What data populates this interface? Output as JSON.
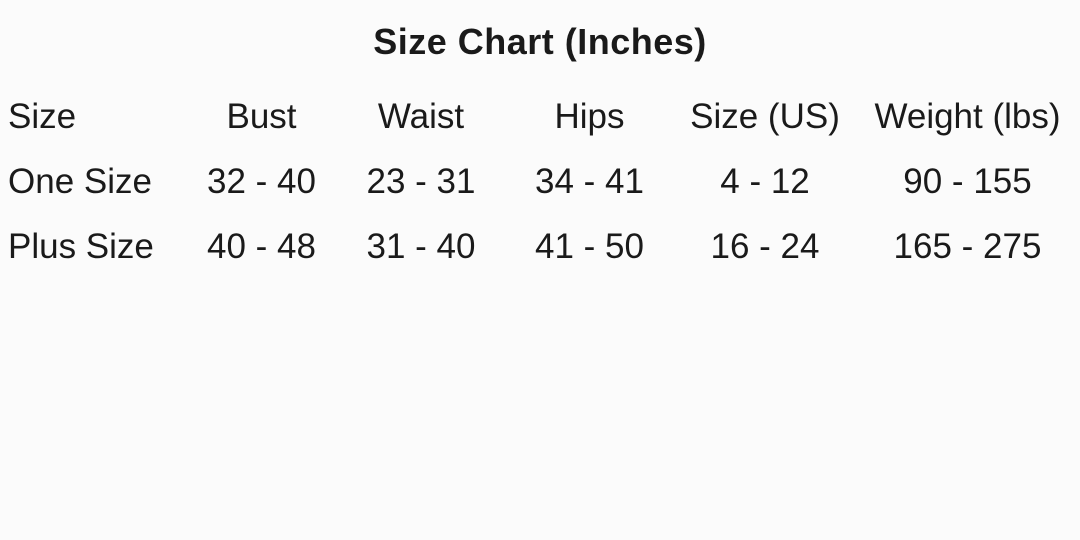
{
  "page": {
    "background_color": "#fbfbfb",
    "text_color": "#1a1a1a"
  },
  "title": "Size Chart (Inches)",
  "table": {
    "columns": [
      "Size",
      "Bust",
      "Waist",
      "Hips",
      "Size (US)",
      "Weight (lbs)"
    ],
    "rows": [
      [
        "One Size",
        "32 - 40",
        "23 - 31",
        "34 - 41",
        "4 - 12",
        "90 - 155"
      ],
      [
        "Plus Size",
        "40 - 48",
        "31 - 40",
        "41 - 50",
        "16 - 24",
        "165 - 275"
      ]
    ]
  },
  "chart_data": {
    "type": "table",
    "title": "Size Chart (Inches)",
    "columns": [
      "Size",
      "Bust",
      "Waist",
      "Hips",
      "Size (US)",
      "Weight (lbs)"
    ],
    "rows": [
      {
        "size": "One Size",
        "bust_inches": [
          32,
          40
        ],
        "waist_inches": [
          23,
          31
        ],
        "hips_inches": [
          34,
          41
        ],
        "size_us": [
          4,
          12
        ],
        "weight_lbs": [
          90,
          155
        ]
      },
      {
        "size": "Plus Size",
        "bust_inches": [
          40,
          48
        ],
        "waist_inches": [
          31,
          40
        ],
        "hips_inches": [
          41,
          50
        ],
        "size_us": [
          16,
          24
        ],
        "weight_lbs": [
          165,
          275
        ]
      }
    ],
    "layout_hints": {
      "title_position": "top-center",
      "header_row": true,
      "gridlines": false,
      "first_column_align": "left",
      "other_columns_align": "center"
    }
  }
}
